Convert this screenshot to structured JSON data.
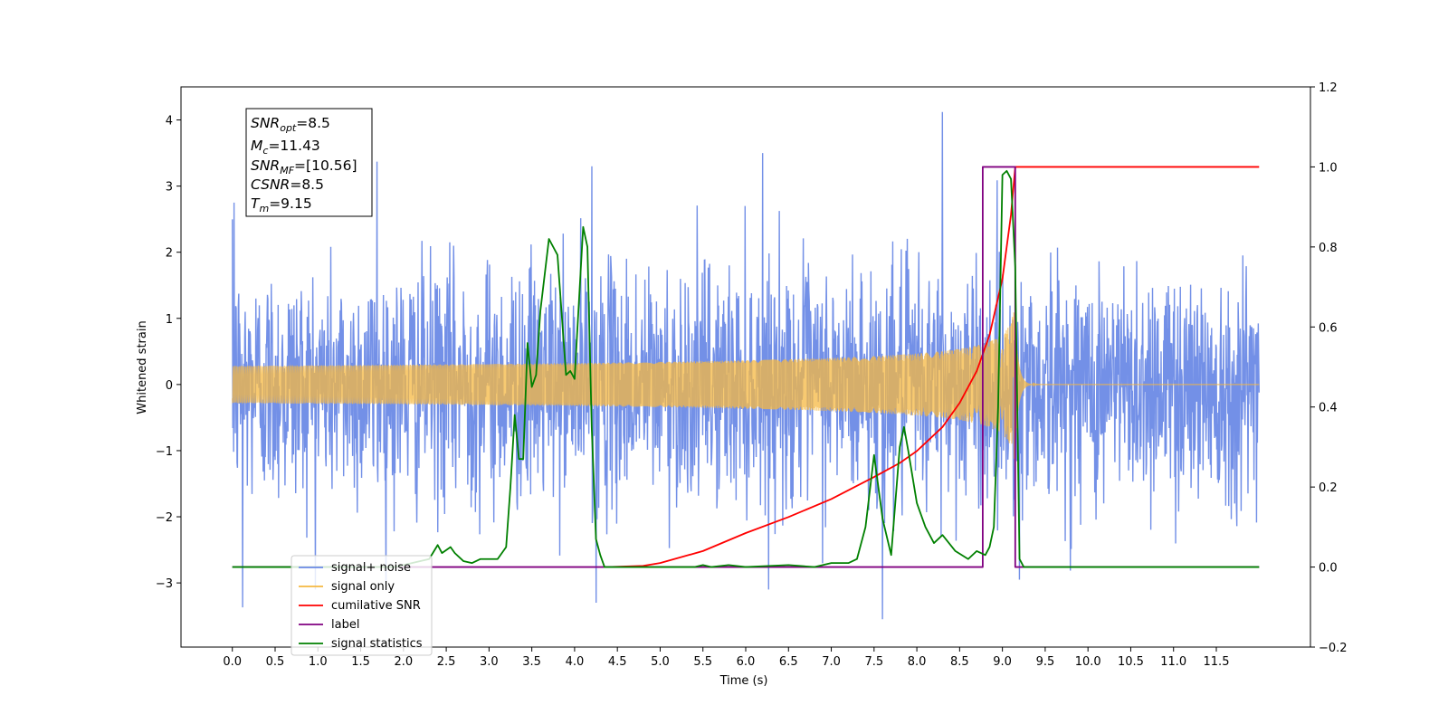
{
  "chart_data": {
    "type": "line",
    "title": "",
    "xlabel": "Time (s)",
    "ylabel": "Whitened strain",
    "y2label": "",
    "xlim": [
      -0.6,
      12.6
    ],
    "ylim": [
      -3.97,
      4.5
    ],
    "y2lim": [
      -0.2,
      1.2
    ],
    "xticks": [
      0.0,
      0.5,
      1.0,
      1.5,
      2.0,
      2.5,
      3.0,
      3.5,
      4.0,
      4.5,
      5.0,
      5.5,
      6.0,
      6.5,
      7.0,
      7.5,
      8.0,
      8.5,
      9.0,
      9.5,
      10.0,
      10.5,
      11.0,
      11.5
    ],
    "xtick_labels": [
      "0.0",
      "0.5",
      "1.0",
      "1.5",
      "2.0",
      "2.5",
      "3.0",
      "3.5",
      "4.0",
      "4.5",
      "5.0",
      "5.5",
      "6.0",
      "6.5",
      "7.0",
      "7.5",
      "8.0",
      "8.5",
      "9.0",
      "9.5",
      "10.0",
      "10.5",
      "11.0",
      "11.5"
    ],
    "yticks": [
      -3,
      -2,
      -1,
      0,
      1,
      2,
      3,
      4
    ],
    "ytick_labels": [
      "−3",
      "−2",
      "−1",
      "0",
      "1",
      "2",
      "3",
      "4"
    ],
    "y2ticks": [
      -0.2,
      0.0,
      0.2,
      0.4,
      0.6,
      0.8,
      1.0,
      1.2
    ],
    "y2tick_labels": [
      "−0.2",
      "0.0",
      "0.2",
      "0.4",
      "0.6",
      "0.8",
      "1.0",
      "1.2"
    ],
    "grid": false,
    "legend_position": "lower-left",
    "annotation_lines": [
      {
        "sym": "SNR",
        "sub": "opt",
        "rest": "=8.5"
      },
      {
        "sym": "M",
        "sub": "c",
        "rest": "=11.43"
      },
      {
        "sym": "SNR",
        "sub": "MF",
        "rest": "=[10.56]"
      },
      {
        "sym": "CSNR",
        "sub": "",
        "rest": "=8.5"
      },
      {
        "sym": "T",
        "sub": "m",
        "rest": "=9.15"
      }
    ],
    "series": [
      {
        "name": "signal+ noise",
        "axis": "left",
        "color": "#6b8ae6",
        "kind": "noise",
        "t_start": 0.0,
        "t_end": 12.0,
        "std": 0.9,
        "notable_peaks": [
          [
            0.02,
            2.75
          ],
          [
            0.12,
            -3.37
          ],
          [
            1.69,
            3.37
          ],
          [
            4.2,
            3.3
          ],
          [
            4.25,
            -3.3
          ],
          [
            6.2,
            3.5
          ],
          [
            7.6,
            -3.55
          ],
          [
            8.3,
            4.12
          ],
          [
            9.2,
            -2.95
          ]
        ]
      },
      {
        "name": "signal only",
        "axis": "left",
        "color": "#f5b841",
        "kind": "chirp",
        "t_merge": 9.15,
        "peak_amplitude": 1.3
      },
      {
        "name": "cumilative SNR",
        "axis": "right",
        "color": "#ff0000",
        "x": [
          4.4,
          4.8,
          5.0,
          5.5,
          6.0,
          6.5,
          7.0,
          7.5,
          7.8,
          8.0,
          8.3,
          8.5,
          8.7,
          8.85,
          9.0,
          9.1,
          9.15,
          12.0
        ],
        "y": [
          0.0,
          0.003,
          0.01,
          0.04,
          0.085,
          0.125,
          0.17,
          0.225,
          0.26,
          0.29,
          0.35,
          0.41,
          0.49,
          0.58,
          0.72,
          0.88,
          1.0,
          1.0
        ]
      },
      {
        "name": "label",
        "axis": "right",
        "color": "#800080",
        "x": [
          0.0,
          8.77,
          8.77,
          9.15,
          9.15,
          12.0
        ],
        "y": [
          0.0,
          0.0,
          1.0,
          1.0,
          0.0,
          0.0
        ]
      },
      {
        "name": "signal statistics",
        "axis": "right",
        "color": "#008000",
        "x": [
          0.0,
          1.9,
          2.1,
          2.3,
          2.4,
          2.45,
          2.55,
          2.6,
          2.7,
          2.8,
          2.9,
          3.0,
          3.1,
          3.2,
          3.25,
          3.3,
          3.35,
          3.4,
          3.45,
          3.5,
          3.55,
          3.6,
          3.7,
          3.8,
          3.9,
          3.95,
          4.0,
          4.05,
          4.1,
          4.15,
          4.2,
          4.25,
          4.3,
          4.35,
          4.4,
          4.6,
          5.0,
          5.4,
          5.5,
          5.6,
          5.8,
          6.0,
          6.5,
          6.8,
          7.0,
          7.2,
          7.3,
          7.4,
          7.5,
          7.6,
          7.7,
          7.8,
          7.85,
          7.9,
          8.0,
          8.1,
          8.2,
          8.3,
          8.45,
          8.6,
          8.7,
          8.8,
          8.85,
          8.9,
          8.95,
          9.0,
          9.05,
          9.1,
          9.15,
          9.2,
          9.25,
          12.0
        ],
        "y": [
          0.0,
          0.0,
          0.01,
          0.02,
          0.055,
          0.035,
          0.05,
          0.035,
          0.015,
          0.01,
          0.02,
          0.02,
          0.02,
          0.05,
          0.2,
          0.38,
          0.27,
          0.27,
          0.56,
          0.45,
          0.48,
          0.64,
          0.82,
          0.78,
          0.48,
          0.49,
          0.47,
          0.66,
          0.85,
          0.8,
          0.35,
          0.07,
          0.03,
          0.0,
          0.0,
          0.0,
          0.0,
          0.0,
          0.005,
          0.0,
          0.005,
          0.0,
          0.005,
          0.0,
          0.01,
          0.01,
          0.02,
          0.1,
          0.28,
          0.12,
          0.03,
          0.3,
          0.35,
          0.29,
          0.16,
          0.1,
          0.06,
          0.08,
          0.04,
          0.02,
          0.04,
          0.03,
          0.05,
          0.1,
          0.4,
          0.98,
          0.99,
          0.97,
          0.75,
          0.02,
          0.0,
          0.0
        ]
      }
    ],
    "legend_entries": [
      {
        "label": "signal+ noise",
        "color": "#6b8ae6"
      },
      {
        "label": "signal only",
        "color": "#f5b841"
      },
      {
        "label": "cumilative SNR",
        "color": "#ff0000"
      },
      {
        "label": "label",
        "color": "#800080"
      },
      {
        "label": "signal statistics",
        "color": "#008000"
      }
    ]
  }
}
